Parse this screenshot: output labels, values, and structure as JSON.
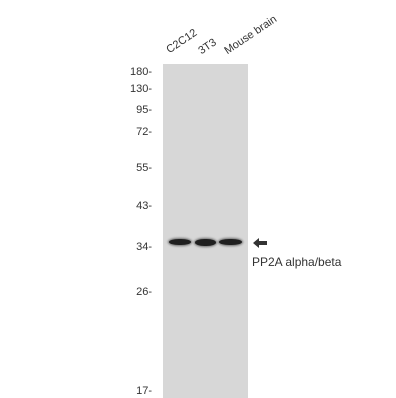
{
  "lanes": [
    "C2C12",
    "3T3",
    "Mouse brain"
  ],
  "mw_markers": [
    "180-",
    "130-",
    "95-",
    "72-",
    "55-",
    "43-",
    "34-",
    "26-",
    "17-"
  ],
  "target_label": "PP2A alpha/beta",
  "colors": {
    "membrane": "#d7d7d7",
    "band": "#1f1f1f",
    "text": "#333333"
  },
  "icons": {
    "arrow": "left-arrow-icon"
  }
}
